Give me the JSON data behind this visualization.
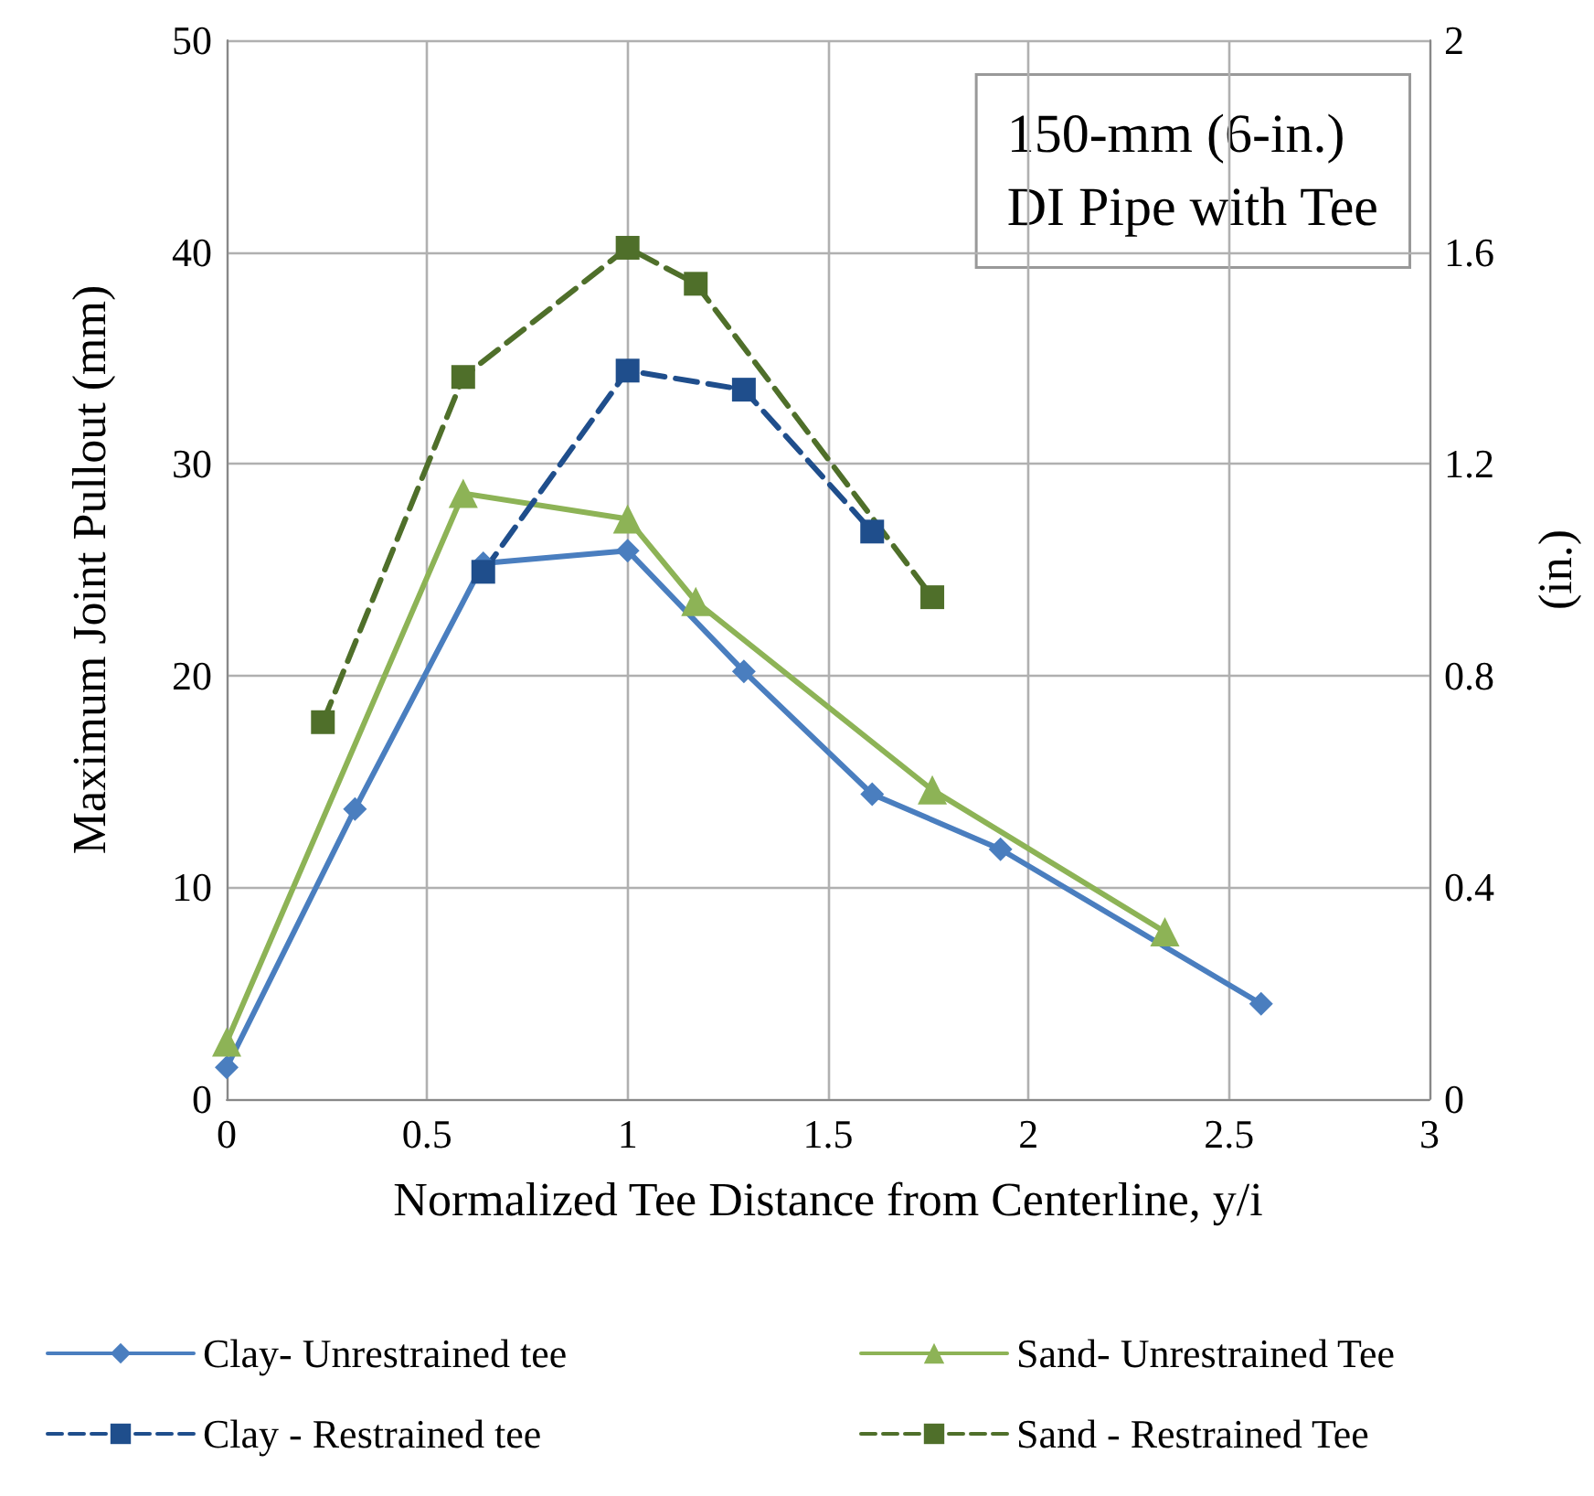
{
  "chart_data": {
    "type": "line",
    "xlabel": "Normalized Tee Distance from Centerline, y/i",
    "ylabel": "Maximum Joint Pullout (mm)",
    "y2label": "(in.)",
    "annotations": [
      "150-mm (6-in.)\nDI Pipe with Tee"
    ],
    "xlim": [
      0,
      3
    ],
    "xticks": [
      0,
      0.5,
      1,
      1.5,
      2,
      2.5,
      3
    ],
    "ylim": [
      0,
      50
    ],
    "yticks": [
      0,
      10,
      20,
      30,
      40,
      50
    ],
    "y2lim": [
      0,
      2
    ],
    "y2ticks": [
      0,
      0.4,
      0.8,
      1.2,
      1.6,
      2
    ],
    "grid": true,
    "legend": "bottom",
    "series": [
      {
        "name": "Clay- Unrestrained tee",
        "color": "#4a7ebf",
        "marker": "diamond",
        "line_style": "solid",
        "x": [
          0,
          0.32,
          0.64,
          1,
          1.29,
          1.61,
          1.93,
          2.58
        ],
        "values": [
          1.5,
          13.7,
          25.3,
          25.9,
          20.2,
          14.4,
          11.8,
          4.5
        ]
      },
      {
        "name": "Sand- Unrestrained Tee",
        "color": "#8db356",
        "marker": "triangle",
        "line_style": "solid",
        "x": [
          0,
          0.59,
          1,
          1.17,
          1.76,
          2.34
        ],
        "values": [
          2.7,
          28.6,
          27.4,
          23.5,
          14.6,
          7.9
        ]
      },
      {
        "name": "Clay - Restrained tee",
        "color": "#1f4e8c",
        "marker": "square",
        "line_style": "dashed",
        "x": [
          0.64,
          1,
          1.29,
          1.61
        ],
        "values": [
          24.9,
          34.4,
          33.5,
          26.8
        ]
      },
      {
        "name": "Sand - Restrained Tee",
        "color": "#4f6f2a",
        "marker": "square",
        "line_style": "dashed",
        "x": [
          0.24,
          0.59,
          1,
          1.17,
          1.76
        ],
        "values": [
          17.8,
          34.1,
          40.2,
          38.5,
          23.7
        ]
      }
    ]
  }
}
